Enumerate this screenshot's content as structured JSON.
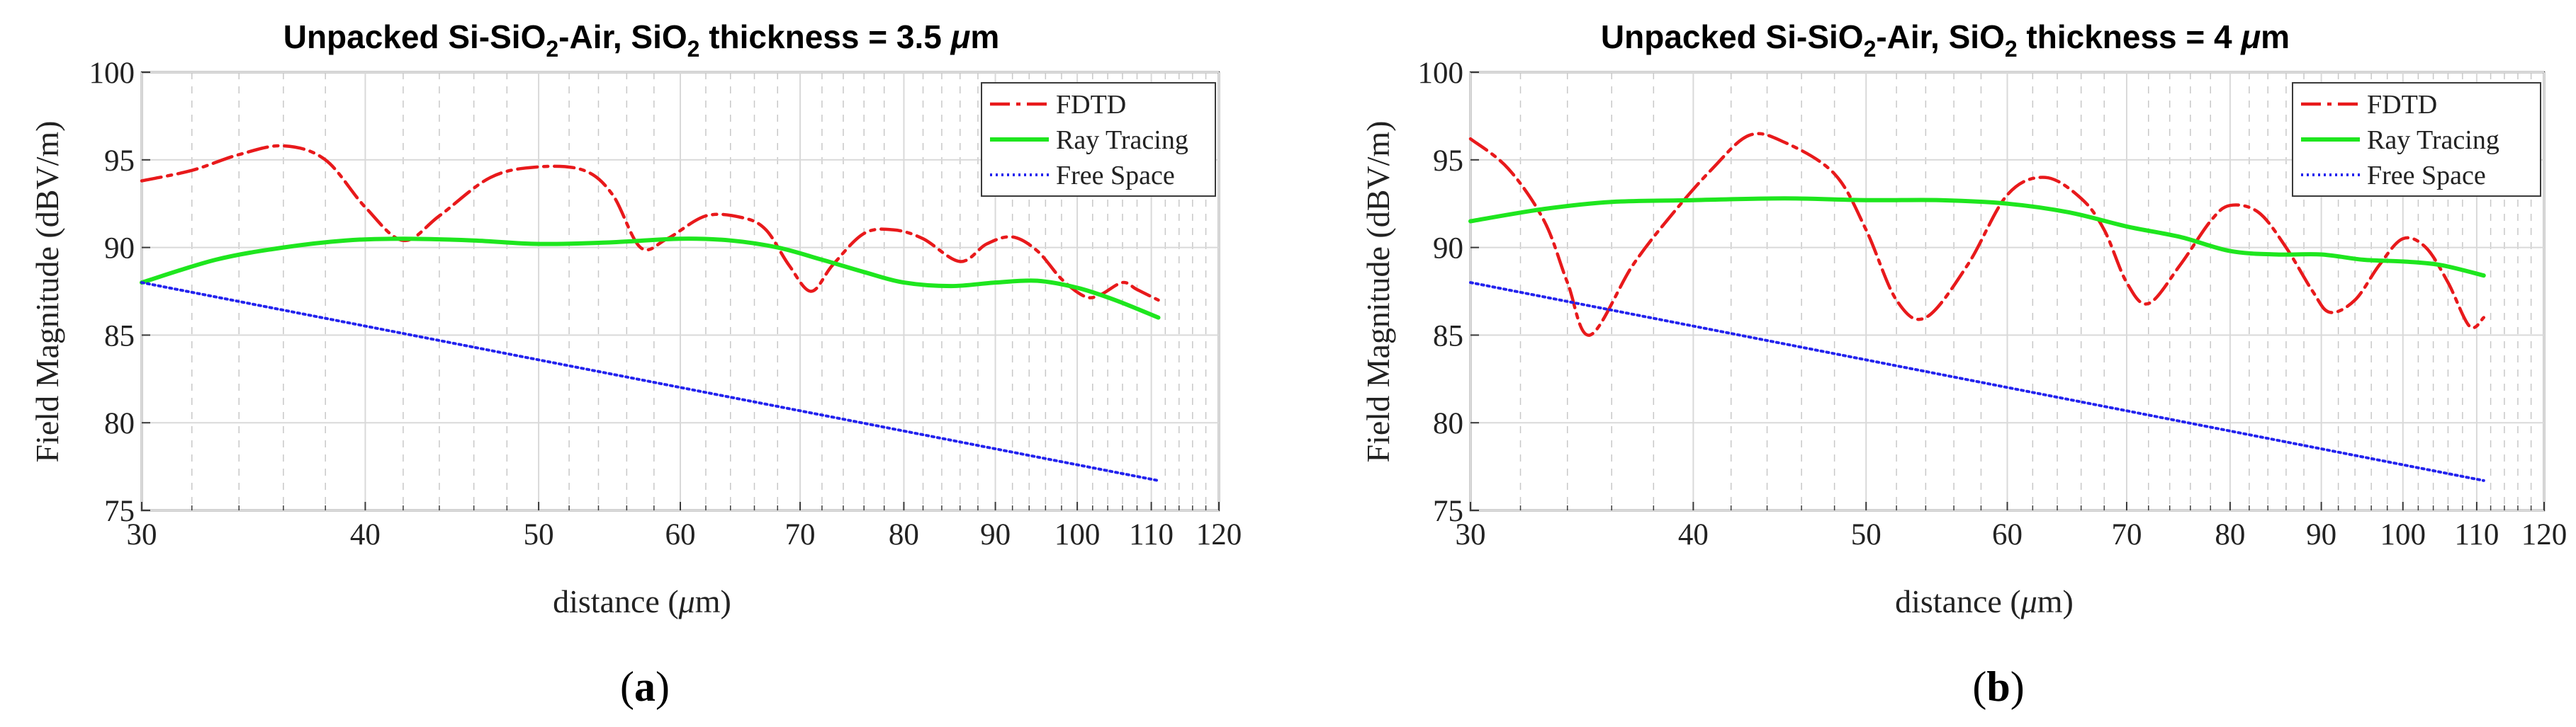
{
  "figure": {
    "panels": [
      {
        "id": "a",
        "title_parts": [
          "Unpacked Si-SiO",
          "2",
          "-Air, SiO",
          "2",
          " thickness = 3.5 ",
          "μ",
          "m"
        ],
        "sublabel_parts": [
          "(",
          "a",
          ")"
        ]
      },
      {
        "id": "b",
        "title_parts": [
          "Unpacked Si-SiO",
          "2",
          "-Air, SiO",
          "2",
          " thickness = 4 ",
          "μ",
          "m"
        ],
        "sublabel_parts": [
          "(",
          "b",
          ")"
        ]
      }
    ],
    "series_colors": {
      "FDTD": "#e8191b",
      "Ray Tracing": "#1ee61e",
      "Free Space": "#2222ee"
    }
  },
  "chart_data": [
    {
      "type": "line",
      "title": "Unpacked Si-SiO2-Air, SiO2 thickness = 3.5 μm",
      "xlabel_parts": [
        "distance (",
        "μ",
        "m)"
      ],
      "ylabel": "Field Magnitude (dBV/m)",
      "xscale": "log",
      "xlim": [
        30,
        120
      ],
      "ylim": [
        75,
        100
      ],
      "xticks": [
        30,
        40,
        50,
        60,
        70,
        80,
        90,
        100,
        110,
        120
      ],
      "yticks": [
        75,
        80,
        85,
        90,
        95,
        100
      ],
      "grid": true,
      "legend_position": "top-right",
      "series": [
        {
          "name": "FDTD",
          "style": "dash-dot",
          "x": [
            30,
            32,
            34,
            36,
            38,
            40,
            42,
            44,
            47,
            50,
            53,
            55,
            57,
            59,
            62,
            65,
            67,
            69,
            71,
            73,
            76,
            79,
            82,
            86,
            89,
            92,
            95,
            98,
            101,
            103,
            106,
            108,
            111
          ],
          "y": [
            93.8,
            94.4,
            95.3,
            95.8,
            95.0,
            92.3,
            90.4,
            91.8,
            94.0,
            94.6,
            94.4,
            93.0,
            90.0,
            90.5,
            91.8,
            91.7,
            91.0,
            89.0,
            87.5,
            89.0,
            90.8,
            91.0,
            90.5,
            89.2,
            90.2,
            90.6,
            89.8,
            88.2,
            87.2,
            87.3,
            88.0,
            87.6,
            87.0
          ]
        },
        {
          "name": "Ray Tracing",
          "style": "solid",
          "x": [
            30,
            33,
            36,
            39,
            42,
            46,
            50,
            55,
            60,
            64,
            68,
            72,
            76,
            80,
            85,
            90,
            95,
            100,
            105,
            111
          ],
          "y": [
            88.0,
            89.3,
            90.0,
            90.4,
            90.5,
            90.4,
            90.2,
            90.3,
            90.5,
            90.4,
            90.0,
            89.3,
            88.6,
            88.0,
            87.8,
            88.0,
            88.1,
            87.7,
            87.0,
            86.0
          ]
        },
        {
          "name": "Free Space",
          "style": "dotted",
          "x": [
            30,
            111
          ],
          "y": [
            88.0,
            76.7
          ]
        }
      ]
    },
    {
      "type": "line",
      "title": "Unpacked Si-SiO2-Air, SiO2 thickness = 4 μm",
      "xlabel_parts": [
        "distance (",
        "μ",
        "m)"
      ],
      "ylabel": "Field Magnitude (dBV/m)",
      "xscale": "log",
      "xlim": [
        30,
        120
      ],
      "ylim": [
        75,
        100
      ],
      "xticks": [
        30,
        40,
        50,
        60,
        70,
        80,
        90,
        100,
        110,
        120
      ],
      "yticks": [
        75,
        80,
        85,
        90,
        95,
        100
      ],
      "grid": true,
      "legend_position": "top-right",
      "series": [
        {
          "name": "FDTD",
          "style": "dash-dot",
          "x": [
            30,
            31.5,
            33,
            34,
            35,
            37,
            39,
            41,
            43,
            45,
            48,
            50,
            52,
            54,
            57,
            60,
            63,
            66,
            68,
            70,
            72,
            75,
            78,
            80,
            83,
            86,
            89,
            91,
            94,
            97,
            100,
            103,
            106,
            109,
            111
          ],
          "y": [
            96.2,
            94.5,
            91.5,
            88.0,
            85.0,
            89.0,
            92.0,
            94.5,
            96.4,
            96.0,
            94.2,
            91.0,
            87.0,
            86.0,
            89.0,
            93.0,
            94.0,
            92.8,
            91.0,
            88.0,
            86.8,
            89.0,
            91.5,
            92.4,
            92.0,
            90.0,
            87.5,
            86.3,
            87.0,
            89.0,
            90.5,
            90.0,
            88.0,
            85.5,
            86.0
          ]
        },
        {
          "name": "Ray Tracing",
          "style": "solid",
          "x": [
            30,
            33,
            36,
            40,
            45,
            50,
            55,
            60,
            65,
            70,
            75,
            80,
            85,
            90,
            95,
            100,
            105,
            111
          ],
          "y": [
            91.5,
            92.2,
            92.6,
            92.7,
            92.8,
            92.7,
            92.7,
            92.5,
            92.0,
            91.2,
            90.6,
            89.8,
            89.6,
            89.6,
            89.3,
            89.2,
            89.0,
            88.4
          ]
        },
        {
          "name": "Free Space",
          "style": "dotted",
          "x": [
            30,
            111
          ],
          "y": [
            88.0,
            76.7
          ]
        }
      ]
    }
  ]
}
